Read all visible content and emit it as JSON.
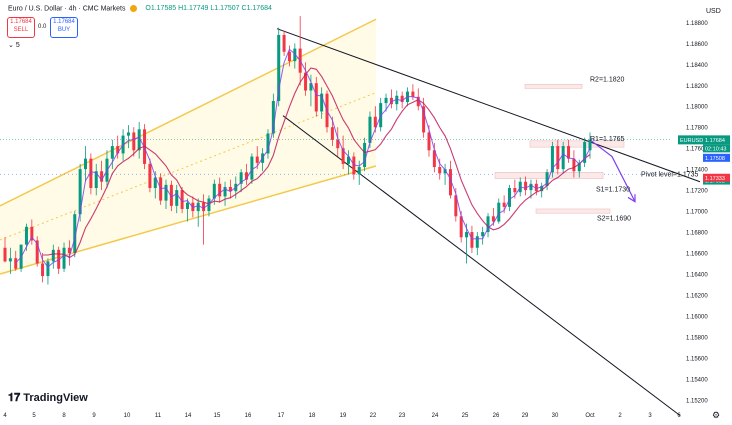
{
  "header": {
    "title": "Euro / U.S. Dollar · 4h · CMC Markets",
    "ohlc": "O1.17585 H1.17749 L1.17507 C1.17684"
  },
  "sell": {
    "price": "1.17684",
    "label": "SELL"
  },
  "buy": {
    "price": "1.17684",
    "label": "BUY"
  },
  "spread": "0.0",
  "interval": "5",
  "currency": "USD",
  "logo": "TradingView",
  "colors": {
    "up": "#089981",
    "down": "#f23645",
    "ema": "#c2185b",
    "purple": "#7e3ff2",
    "channel": "#f2c94c",
    "current": "#089981"
  },
  "chart_data": {
    "type": "candlestick",
    "symbol": "EURUSD",
    "timeframe": "4h",
    "x_tick_labels": [
      "4",
      "5",
      "8",
      "9",
      "10",
      "11",
      "14",
      "15",
      "16",
      "17",
      "18",
      "19",
      "22",
      "23",
      "24",
      "25",
      "26",
      "29",
      "30",
      "Oct",
      "2",
      "3",
      "6"
    ],
    "y_tick_labels": [
      "1.18800",
      "1.18600",
      "1.18400",
      "1.18200",
      "1.18000",
      "1.17800",
      "1.17600",
      "1.17400",
      "1.17200",
      "1.17000",
      "1.16800",
      "1.16600",
      "1.16400",
      "1.16200",
      "1.16000",
      "1.15800",
      "1.15600",
      "1.15400",
      "1.15200"
    ],
    "ylim": [
      1.1515,
      1.1888
    ],
    "price_labels": [
      {
        "text": "EURUSD",
        "value": 1.17684,
        "color": "#089981"
      },
      {
        "text": "1.17684",
        "value": 1.17684,
        "color": "#089981"
      },
      {
        "text": "02:10:43",
        "value": 1.17684,
        "color": "#089981"
      },
      {
        "text": "1.17508",
        "value": 1.17508,
        "color": "#2962ff"
      },
      {
        "text": "1.17352",
        "value": 1.17352,
        "color": "#089981"
      },
      {
        "text": "1.17333",
        "value": 1.17333,
        "color": "#f23645"
      }
    ],
    "annotations": [
      {
        "text": "R2=1.1820",
        "value": 1.182
      },
      {
        "text": "R1=1.1765",
        "value": 1.1765
      },
      {
        "text": "Pivot level=1.1735",
        "value": 1.1735
      },
      {
        "text": "S1=1.1730",
        "value": 1.173
      },
      {
        "text": "S2=1.1690",
        "value": 1.169
      }
    ],
    "candles_xrange": [
      "4",
      "Oct"
    ],
    "candles": [
      [
        1.1665,
        1.1675,
        1.1651,
        1.1652
      ],
      [
        1.1652,
        1.1665,
        1.164,
        1.1655
      ],
      [
        1.1655,
        1.1662,
        1.1643,
        1.1645
      ],
      [
        1.1645,
        1.1668,
        1.1642,
        1.1668
      ],
      [
        1.1668,
        1.1688,
        1.1662,
        1.1685
      ],
      [
        1.1685,
        1.1692,
        1.1668,
        1.1672
      ],
      [
        1.1672,
        1.1676,
        1.1647,
        1.165
      ],
      [
        1.165,
        1.166,
        1.1632,
        1.1638
      ],
      [
        1.1638,
        1.1655,
        1.163,
        1.1652
      ],
      [
        1.1652,
        1.1668,
        1.1645,
        1.1663
      ],
      [
        1.1663,
        1.1666,
        1.164,
        1.1645
      ],
      [
        1.1645,
        1.167,
        1.1642,
        1.1665
      ],
      [
        1.1665,
        1.1672,
        1.1648,
        1.166
      ],
      [
        1.166,
        1.17,
        1.1656,
        1.1697
      ],
      [
        1.1697,
        1.1745,
        1.169,
        1.174
      ],
      [
        1.174,
        1.1762,
        1.1728,
        1.175
      ],
      [
        1.175,
        1.1755,
        1.1716,
        1.1722
      ],
      [
        1.1722,
        1.1745,
        1.1715,
        1.1738
      ],
      [
        1.1738,
        1.1748,
        1.172,
        1.1728
      ],
      [
        1.1728,
        1.1758,
        1.1722,
        1.175
      ],
      [
        1.175,
        1.1768,
        1.174,
        1.1762
      ],
      [
        1.1762,
        1.1772,
        1.175,
        1.1755
      ],
      [
        1.1755,
        1.1778,
        1.1748,
        1.1772
      ],
      [
        1.1772,
        1.1782,
        1.176,
        1.1775
      ],
      [
        1.1775,
        1.178,
        1.1752,
        1.1758
      ],
      [
        1.1758,
        1.1785,
        1.175,
        1.1778
      ],
      [
        1.1778,
        1.1783,
        1.174,
        1.1745
      ],
      [
        1.1745,
        1.175,
        1.1718,
        1.1722
      ],
      [
        1.1722,
        1.1738,
        1.1712,
        1.1732
      ],
      [
        1.1732,
        1.1736,
        1.1706,
        1.171
      ],
      [
        1.171,
        1.173,
        1.1702,
        1.1725
      ],
      [
        1.1725,
        1.1729,
        1.17,
        1.1705
      ],
      [
        1.1705,
        1.1725,
        1.1698,
        1.172
      ],
      [
        1.172,
        1.1723,
        1.1698,
        1.1702
      ],
      [
        1.1702,
        1.1712,
        1.169,
        1.1708
      ],
      [
        1.1708,
        1.1714,
        1.1694,
        1.17
      ],
      [
        1.17,
        1.1712,
        1.1685,
        1.1708
      ],
      [
        1.1708,
        1.1716,
        1.1668,
        1.17
      ],
      [
        1.17,
        1.1715,
        1.1695,
        1.1712
      ],
      [
        1.1712,
        1.173,
        1.1706,
        1.1726
      ],
      [
        1.1726,
        1.1732,
        1.1708,
        1.1714
      ],
      [
        1.1714,
        1.1728,
        1.1705,
        1.1723
      ],
      [
        1.1723,
        1.173,
        1.1712,
        1.1719
      ],
      [
        1.1719,
        1.1733,
        1.1712,
        1.1726
      ],
      [
        1.1726,
        1.174,
        1.1718,
        1.1737
      ],
      [
        1.1737,
        1.1745,
        1.1725,
        1.173
      ],
      [
        1.173,
        1.1755,
        1.1726,
        1.1752
      ],
      [
        1.1752,
        1.1762,
        1.174,
        1.1746
      ],
      [
        1.1746,
        1.176,
        1.1738,
        1.1755
      ],
      [
        1.1755,
        1.1778,
        1.175,
        1.1774
      ],
      [
        1.1774,
        1.1812,
        1.177,
        1.1805
      ],
      [
        1.1805,
        1.1875,
        1.18,
        1.1868
      ],
      [
        1.1868,
        1.1872,
        1.1848,
        1.1852
      ],
      [
        1.1852,
        1.1858,
        1.1838,
        1.1843
      ],
      [
        1.1843,
        1.186,
        1.1836,
        1.1855
      ],
      [
        1.1855,
        1.1886,
        1.182,
        1.1832
      ],
      [
        1.1832,
        1.1842,
        1.181,
        1.1815
      ],
      [
        1.1815,
        1.183,
        1.18,
        1.1822
      ],
      [
        1.1822,
        1.1828,
        1.179,
        1.1795
      ],
      [
        1.1795,
        1.1818,
        1.1788,
        1.1812
      ],
      [
        1.1812,
        1.1815,
        1.1775,
        1.178
      ],
      [
        1.178,
        1.179,
        1.1762,
        1.1768
      ],
      [
        1.1768,
        1.178,
        1.1752,
        1.176
      ],
      [
        1.176,
        1.1772,
        1.174,
        1.1745
      ],
      [
        1.1745,
        1.1758,
        1.1735,
        1.1752
      ],
      [
        1.1752,
        1.1756,
        1.173,
        1.1735
      ],
      [
        1.1735,
        1.1748,
        1.1725,
        1.1742
      ],
      [
        1.1742,
        1.177,
        1.1738,
        1.1765
      ],
      [
        1.1765,
        1.1795,
        1.176,
        1.179
      ],
      [
        1.179,
        1.18,
        1.1775,
        1.178
      ],
      [
        1.178,
        1.1808,
        1.1776,
        1.1803
      ],
      [
        1.1803,
        1.1812,
        1.1795,
        1.1808
      ],
      [
        1.1808,
        1.1816,
        1.1798,
        1.1802
      ],
      [
        1.1802,
        1.1815,
        1.1796,
        1.181
      ],
      [
        1.181,
        1.1814,
        1.1798,
        1.1804
      ],
      [
        1.1804,
        1.1818,
        1.18,
        1.1814
      ],
      [
        1.1814,
        1.1821,
        1.1806,
        1.1809
      ],
      [
        1.1809,
        1.1817,
        1.1796,
        1.18
      ],
      [
        1.18,
        1.1808,
        1.177,
        1.1775
      ],
      [
        1.1775,
        1.1782,
        1.1752,
        1.1758
      ],
      [
        1.1758,
        1.1765,
        1.1737,
        1.1742
      ],
      [
        1.1742,
        1.175,
        1.173,
        1.1736
      ],
      [
        1.1736,
        1.1745,
        1.1725,
        1.174
      ],
      [
        1.174,
        1.1748,
        1.1712,
        1.1715
      ],
      [
        1.1715,
        1.1722,
        1.169,
        1.1695
      ],
      [
        1.1695,
        1.17,
        1.167,
        1.1675
      ],
      [
        1.1675,
        1.1688,
        1.165,
        1.168
      ],
      [
        1.168,
        1.1686,
        1.166,
        1.1665
      ],
      [
        1.1665,
        1.168,
        1.1658,
        1.1676
      ],
      [
        1.1676,
        1.1685,
        1.1668,
        1.168
      ],
      [
        1.168,
        1.1698,
        1.1675,
        1.1695
      ],
      [
        1.1695,
        1.1703,
        1.1686,
        1.169
      ],
      [
        1.169,
        1.1712,
        1.1688,
        1.1708
      ],
      [
        1.1708,
        1.1715,
        1.1698,
        1.1704
      ],
      [
        1.1704,
        1.1725,
        1.17,
        1.1722
      ],
      [
        1.1722,
        1.173,
        1.1712,
        1.1718
      ],
      [
        1.1718,
        1.1732,
        1.1714,
        1.1728
      ],
      [
        1.1728,
        1.1733,
        1.1715,
        1.172
      ],
      [
        1.172,
        1.173,
        1.1712,
        1.1726
      ],
      [
        1.1726,
        1.173,
        1.1715,
        1.1719
      ],
      [
        1.1719,
        1.1727,
        1.1713,
        1.1724
      ],
      [
        1.1724,
        1.174,
        1.172,
        1.1737
      ],
      [
        1.1737,
        1.1766,
        1.1732,
        1.1762
      ],
      [
        1.1762,
        1.1768,
        1.1735,
        1.174
      ],
      [
        1.174,
        1.1766,
        1.1736,
        1.1762
      ],
      [
        1.1762,
        1.1768,
        1.1746,
        1.175
      ],
      [
        1.175,
        1.1758,
        1.1732,
        1.1738
      ],
      [
        1.1738,
        1.1749,
        1.1732,
        1.1746
      ],
      [
        1.1746,
        1.177,
        1.1742,
        1.1766
      ],
      [
        1.1758,
        1.1775,
        1.175,
        1.1768
      ]
    ]
  }
}
